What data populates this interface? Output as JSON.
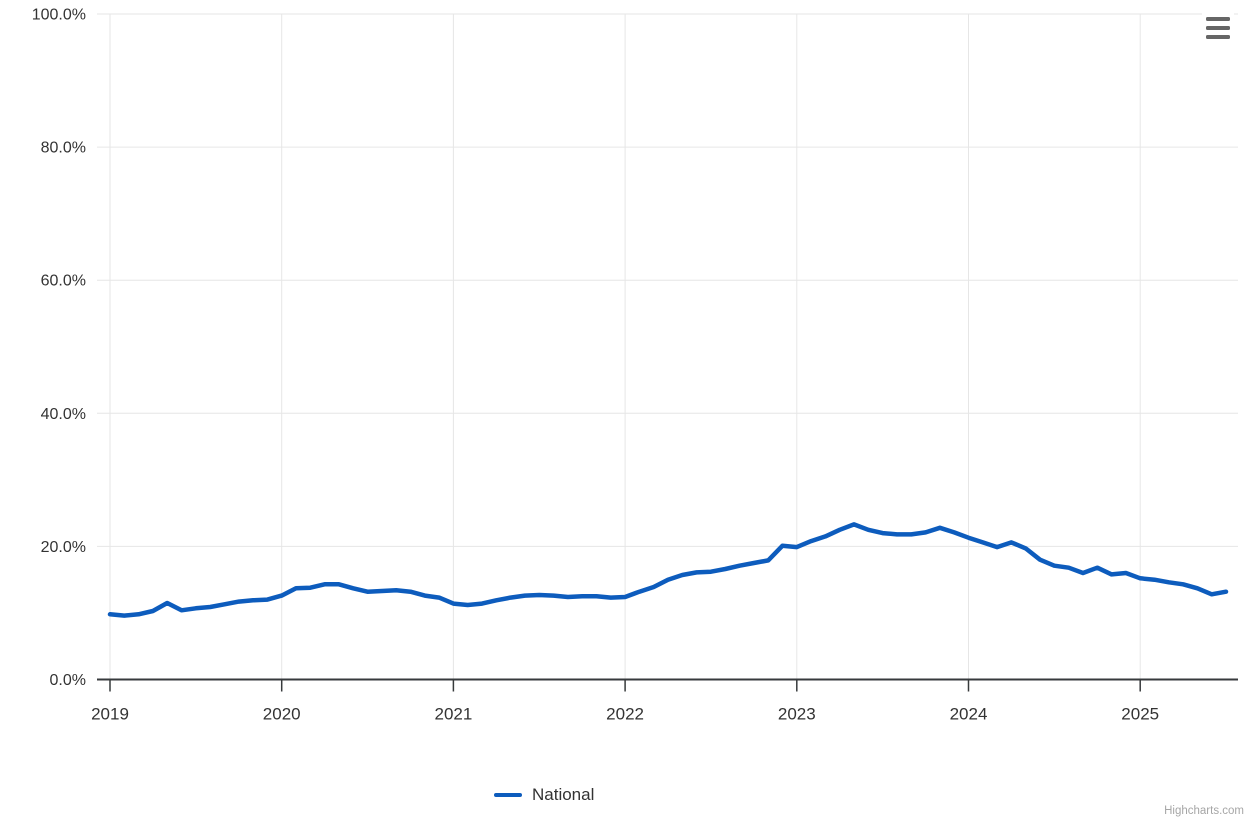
{
  "chart": {
    "legend": {
      "label": "National"
    },
    "credits_label": "Highcharts.com",
    "colors": {
      "series_line": "#0d5cbd",
      "gridline": "#e6e6e6",
      "axis_line": "#373a3c",
      "tick": "#373a3c",
      "axis_label": "#333333",
      "menu_icon": "#666666",
      "credits": "#a6a6a6",
      "background": "#ffffff"
    }
  },
  "chart_data": {
    "type": "line",
    "title": "",
    "xlabel": "",
    "ylabel": "",
    "grid": true,
    "legend_position": "bottom-center",
    "ylim": [
      0,
      100
    ],
    "y_tick_values": [
      0,
      20,
      40,
      60,
      80,
      100
    ],
    "y_tick_labels": [
      "0.0%",
      "20.0%",
      "40.0%",
      "60.0%",
      "80.0%",
      "100.0%"
    ],
    "x_tick_labels": [
      "2019",
      "2020",
      "2021",
      "2022",
      "2023",
      "2024",
      "2025"
    ],
    "x_start": "2019-01",
    "x_end": "2025-07",
    "x_interval": "monthly",
    "series": [
      {
        "name": "National",
        "color": "#0d5cbd",
        "values": [
          9.8,
          9.6,
          9.8,
          10.3,
          11.5,
          10.4,
          10.7,
          10.9,
          11.3,
          11.7,
          11.9,
          12.0,
          12.6,
          13.7,
          13.8,
          14.3,
          14.3,
          13.7,
          13.2,
          13.3,
          13.4,
          13.2,
          12.6,
          12.3,
          11.4,
          11.2,
          11.4,
          11.9,
          12.3,
          12.6,
          12.7,
          12.6,
          12.4,
          12.5,
          12.5,
          12.3,
          12.4,
          13.2,
          13.9,
          15.0,
          15.7,
          16.1,
          16.2,
          16.6,
          17.1,
          17.5,
          17.9,
          20.1,
          19.9,
          20.8,
          21.5,
          22.5,
          23.3,
          22.5,
          22.0,
          21.8,
          21.8,
          22.1,
          22.8,
          22.1,
          21.3,
          20.6,
          19.9,
          20.6,
          19.7,
          18.0,
          17.1,
          16.8,
          16.0,
          16.8,
          15.8,
          16.0,
          15.2,
          15.0,
          14.6,
          14.3,
          13.7,
          12.8,
          13.2
        ]
      }
    ]
  }
}
